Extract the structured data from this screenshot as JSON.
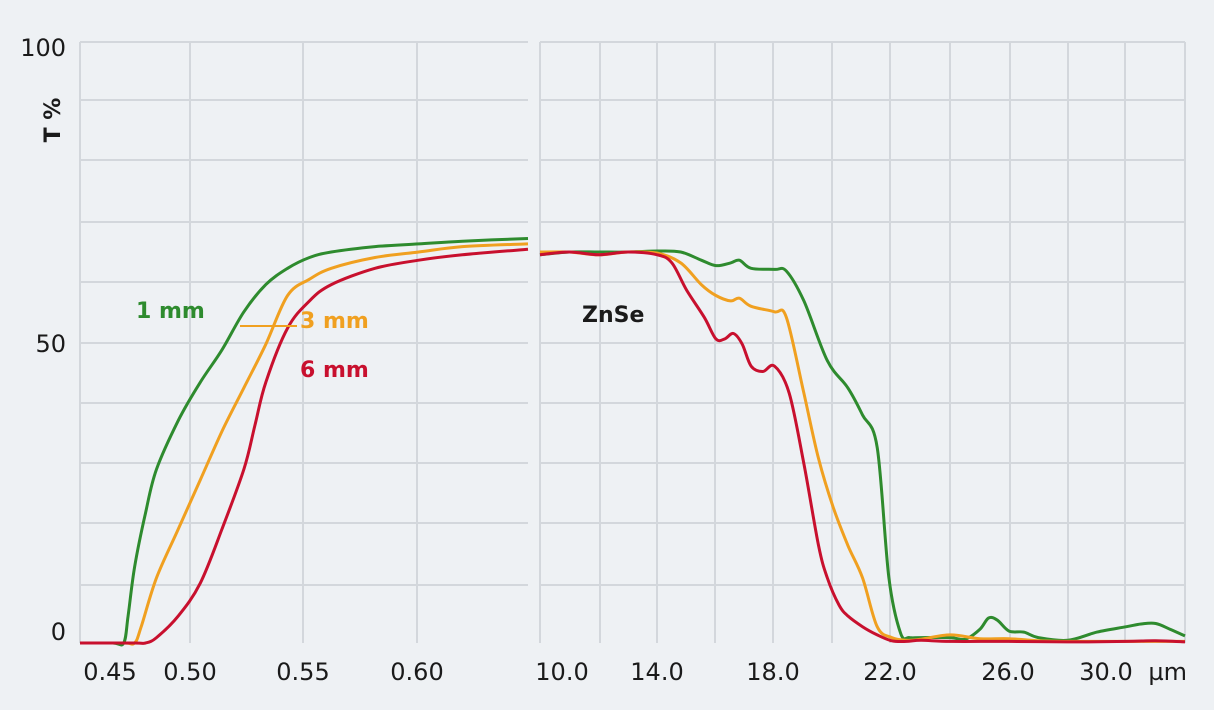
{
  "chart_data": {
    "type": "line",
    "ylabel": "T %",
    "y_ticks": [
      "0",
      "50",
      "100"
    ],
    "ylim": [
      0,
      100
    ],
    "x_unit": "µm",
    "grid": true,
    "annotation": "ZnSe",
    "panels": [
      {
        "name": "left",
        "xlim": [
          0.445,
          0.65
        ],
        "x_tick_labels": [
          "0.45",
          "0.50",
          "0.55",
          "0.60"
        ],
        "series": [
          {
            "name": "1 mm",
            "color": "#2e8b2e",
            "x": [
              0.445,
              0.46,
              0.465,
              0.467,
              0.47,
              0.475,
              0.48,
              0.49,
              0.5,
              0.51,
              0.52,
              0.53,
              0.54,
              0.55,
              0.56,
              0.58,
              0.6,
              0.62,
              0.65
            ],
            "y": [
              0,
              0,
              0,
              5,
              14,
              24,
              32,
              41,
              48,
              54,
              61,
              66,
              69,
              71,
              72,
              73,
              73.5,
              74,
              74.5
            ]
          },
          {
            "name": "3 mm",
            "color": "#f0a020",
            "x": [
              0.445,
              0.465,
              0.47,
              0.473,
              0.48,
              0.49,
              0.5,
              0.51,
              0.52,
              0.53,
              0.54,
              0.55,
              0.56,
              0.58,
              0.6,
              0.62,
              0.65
            ],
            "y": [
              0,
              0,
              0,
              3,
              12,
              21,
              30,
              39,
              47,
              55,
              64,
              67,
              69,
              71,
              72,
              73,
              73.5
            ]
          },
          {
            "name": "6 mm",
            "color": "#c8102e",
            "x": [
              0.445,
              0.47,
              0.475,
              0.48,
              0.49,
              0.5,
              0.51,
              0.52,
              0.525,
              0.53,
              0.54,
              0.55,
              0.56,
              0.58,
              0.6,
              0.62,
              0.65
            ],
            "y": [
              0,
              0,
              0,
              1,
              5,
              11,
              21,
              32,
              40,
              48,
              58,
              63,
              66,
              69,
              70.5,
              71.5,
              72.5
            ]
          }
        ]
      },
      {
        "name": "right",
        "xlim": [
          10.0,
          32.0
        ],
        "x_tick_labels": [
          "10.0",
          "14.0",
          "18.0",
          "22.0",
          "26.0",
          "30.0"
        ],
        "series": [
          {
            "name": "1 mm",
            "color": "#2e8b2e",
            "x": [
              10,
              11,
              12,
              13,
              14,
              14.8,
              15.5,
              16,
              16.5,
              16.8,
              17.2,
              18,
              18.4,
              19,
              19.8,
              20.5,
              21,
              21.5,
              21.9,
              22.3,
              22.6,
              23,
              24,
              24.5,
              25,
              25.3,
              25.6,
              26,
              26.5,
              27,
              28,
              29,
              30,
              30.5,
              31,
              31.5,
              32
            ],
            "y": [
              71.5,
              72,
              72,
              72,
              72.2,
              72,
              70.5,
              69.5,
              70,
              70.5,
              69,
              68.8,
              68.5,
              63,
              52,
              47,
              42,
              36,
              12,
              1.8,
              1,
              1,
              1,
              0.7,
              2.5,
              4.6,
              4.2,
              2.2,
              2,
              1,
              0.5,
              2,
              3,
              3.5,
              3.6,
              2.5,
              1.3
            ]
          },
          {
            "name": "3 mm",
            "color": "#f0a020",
            "x": [
              10,
              11,
              12,
              13,
              14,
              14.8,
              15.5,
              16,
              16.5,
              16.8,
              17.2,
              18,
              18.4,
              19,
              19.5,
              20,
              20.5,
              21,
              21.5,
              22,
              22.5,
              23,
              24,
              25,
              26,
              27,
              28,
              30,
              32
            ],
            "y": [
              72,
              72,
              71.5,
              72,
              71.8,
              70,
              66,
              64,
              63,
              63.5,
              62,
              61,
              60,
              46,
              34,
              25,
              18,
              12,
              3,
              1,
              0.5,
              0.7,
              1.5,
              0.8,
              0.8,
              0.4,
              0.3,
              0.3,
              0.3
            ]
          },
          {
            "name": "6 mm",
            "color": "#c8102e",
            "x": [
              10,
              11,
              12,
              13,
              14,
              14.5,
              15,
              15.6,
              16,
              16.3,
              16.6,
              16.9,
              17.2,
              17.6,
              18,
              18.5,
              19,
              19.5,
              19.8,
              20.2,
              20.5,
              21,
              21.5,
              22,
              22.5,
              23,
              24,
              26,
              28,
              30,
              31,
              32
            ],
            "y": [
              71.5,
              72,
              71.5,
              72,
              71.5,
              70,
              65,
              60,
              56,
              56,
              57,
              55,
              51,
              50,
              51,
              46,
              33,
              18,
              12,
              7,
              5,
              3,
              1.5,
              0.4,
              0.3,
              0.5,
              0.3,
              0.3,
              0.2,
              0.3,
              0.4,
              0.2
            ]
          }
        ]
      }
    ],
    "labels": [
      {
        "text": "1 mm",
        "color": "#2e8b2e"
      },
      {
        "text": "3 mm",
        "color": "#f0a020"
      },
      {
        "text": "6 mm",
        "color": "#c8102e"
      }
    ]
  }
}
